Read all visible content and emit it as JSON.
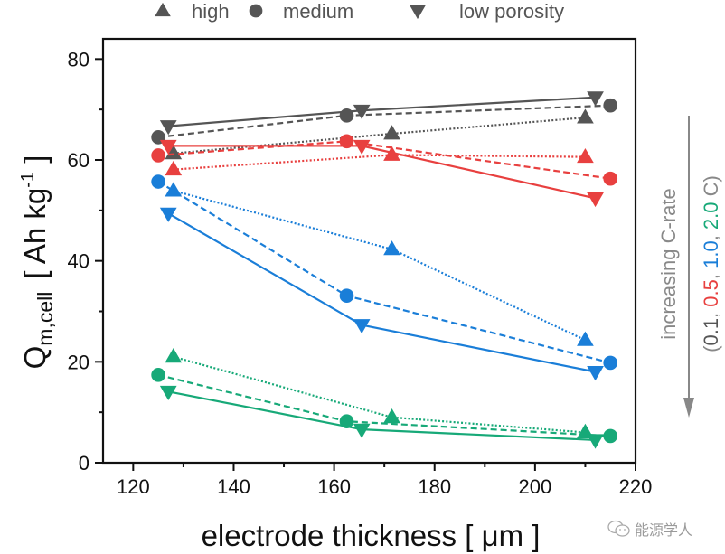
{
  "chart_data": {
    "type": "line",
    "title": "",
    "xlabel": "electrode thickness [ μm ]",
    "ylabel": {
      "main": "Q",
      "subscript": "m,cell",
      "unit_open": "[ Ah kg",
      "unit_sup": "-1",
      "unit_close": " ]"
    },
    "xlim": [
      114,
      220
    ],
    "ylim": [
      0,
      84
    ],
    "x_ticks": [
      120,
      140,
      160,
      180,
      200,
      220
    ],
    "x_minor_ticks": [
      130,
      150,
      170,
      190,
      210
    ],
    "y_ticks": [
      0,
      20,
      40,
      60,
      80
    ],
    "y_minor_ticks": [
      10,
      30,
      50,
      70
    ],
    "grid": false,
    "legend": {
      "placement": "top",
      "entries": [
        {
          "marker": "triangle-up",
          "label": "high",
          "linestyle": "dotted"
        },
        {
          "marker": "circle",
          "label": "medium",
          "linestyle": "dashed"
        },
        {
          "marker": "triangle-down",
          "label": "low porosity",
          "linestyle": "solid"
        }
      ]
    },
    "side_annotation": {
      "text": "increasing C-rate",
      "rates_prefix": "(",
      "rates": [
        {
          "label": "0.1",
          "color": "#555555"
        },
        {
          "label": "0.5",
          "color": "#e8403f"
        },
        {
          "label": "1.0",
          "color": "#1a7ed8"
        },
        {
          "label": "2.0",
          "color": "#17a978"
        }
      ],
      "rates_suffix": " C)",
      "separator": ", ",
      "arrow_direction": "down"
    },
    "series": [
      {
        "name": "0.1 C - low porosity",
        "c_rate": "0.1",
        "porosity": "low",
        "color": "#555555",
        "marker": "triangle-down",
        "linestyle": "solid",
        "x": [
          127,
          165.5,
          212
        ],
        "y": [
          66.7,
          69.8,
          72.4
        ]
      },
      {
        "name": "0.1 C - medium porosity",
        "c_rate": "0.1",
        "porosity": "medium",
        "color": "#555555",
        "marker": "circle",
        "linestyle": "dashed",
        "x": [
          125,
          162.5,
          215
        ],
        "y": [
          64.5,
          68.8,
          70.8
        ]
      },
      {
        "name": "0.1 C - high porosity",
        "c_rate": "0.1",
        "porosity": "high",
        "color": "#555555",
        "marker": "triangle-up",
        "linestyle": "dotted",
        "x": [
          128,
          171.5,
          210
        ],
        "y": [
          61.3,
          65.2,
          68.4
        ]
      },
      {
        "name": "0.5 C - low porosity",
        "c_rate": "0.5",
        "porosity": "low",
        "color": "#e8403f",
        "marker": "triangle-down",
        "linestyle": "solid",
        "x": [
          127,
          165.5,
          212
        ],
        "y": [
          62.8,
          62.8,
          52.4
        ]
      },
      {
        "name": "0.5 C - medium porosity",
        "c_rate": "0.5",
        "porosity": "medium",
        "color": "#e8403f",
        "marker": "circle",
        "linestyle": "dashed",
        "x": [
          125,
          162.5,
          215
        ],
        "y": [
          60.9,
          63.7,
          56.3
        ]
      },
      {
        "name": "0.5 C - high porosity",
        "c_rate": "0.5",
        "porosity": "high",
        "color": "#e8403f",
        "marker": "triangle-up",
        "linestyle": "dotted",
        "x": [
          128,
          171.5,
          210
        ],
        "y": [
          58.1,
          61.0,
          60.6
        ]
      },
      {
        "name": "1.0 C - low porosity",
        "c_rate": "1.0",
        "porosity": "low",
        "color": "#1a7ed8",
        "marker": "triangle-down",
        "linestyle": "solid",
        "x": [
          127,
          165.5,
          212
        ],
        "y": [
          49.4,
          27.3,
          18.0
        ]
      },
      {
        "name": "1.0 C - medium porosity",
        "c_rate": "1.0",
        "porosity": "medium",
        "color": "#1a7ed8",
        "marker": "circle",
        "linestyle": "dashed",
        "x": [
          125,
          162.5,
          215
        ],
        "y": [
          55.7,
          33.1,
          19.8
        ]
      },
      {
        "name": "1.0 C - high porosity",
        "c_rate": "1.0",
        "porosity": "high",
        "color": "#1a7ed8",
        "marker": "triangle-up",
        "linestyle": "dotted",
        "x": [
          128,
          171.5,
          210
        ],
        "y": [
          53.9,
          42.3,
          24.3
        ]
      },
      {
        "name": "2.0 C - low porosity",
        "c_rate": "2.0",
        "porosity": "low",
        "color": "#17a978",
        "marker": "triangle-down",
        "linestyle": "solid",
        "x": [
          127,
          165.5,
          212
        ],
        "y": [
          14.1,
          6.6,
          4.5
        ]
      },
      {
        "name": "2.0 C - medium porosity",
        "c_rate": "2.0",
        "porosity": "medium",
        "color": "#17a978",
        "marker": "circle",
        "linestyle": "dashed",
        "x": [
          125,
          162.5,
          215
        ],
        "y": [
          17.4,
          8.2,
          5.3
        ]
      },
      {
        "name": "2.0 C - high porosity",
        "c_rate": "2.0",
        "porosity": "high",
        "color": "#17a978",
        "marker": "triangle-up",
        "linestyle": "dotted",
        "x": [
          128,
          171.5,
          210
        ],
        "y": [
          21.0,
          9.0,
          6.0
        ]
      }
    ]
  },
  "legend_marker_color": "#555555",
  "annotation_gray": "#888888",
  "watermark": {
    "text": "能源学人",
    "icon": "wechat-chat-icon"
  }
}
